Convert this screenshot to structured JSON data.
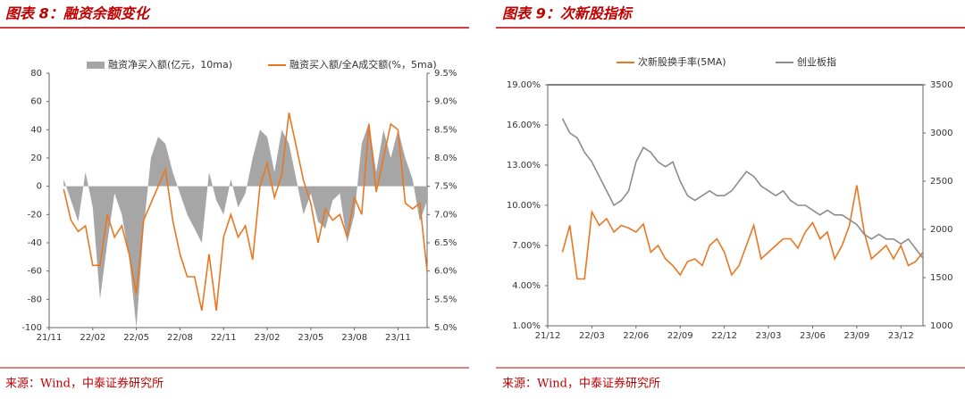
{
  "chart_data": [
    {
      "type": "combo",
      "title": "图表 8：融资余额变化",
      "source": "来源：Wind，中泰证券研究所",
      "categories": [
        "21/11",
        null,
        null,
        null,
        null,
        null,
        "22/02",
        null,
        null,
        null,
        null,
        null,
        "22/05",
        null,
        null,
        null,
        null,
        null,
        "22/08",
        null,
        null,
        null,
        null,
        null,
        "22/11",
        null,
        null,
        null,
        null,
        null,
        "23/02",
        null,
        null,
        null,
        null,
        null,
        "23/05",
        null,
        null,
        null,
        null,
        null,
        "23/08",
        null,
        null,
        null,
        null,
        null,
        "23/11",
        null,
        null,
        null,
        null
      ],
      "ylim": [
        -100,
        80
      ],
      "yticks": [
        -100,
        -80,
        -60,
        -40,
        -20,
        0,
        20,
        40,
        60,
        80
      ],
      "y2lim": [
        5.0,
        9.5
      ],
      "y2ticks": [
        {
          "value": 5.0,
          "label": "5.0%"
        },
        {
          "value": 5.5,
          "label": "5.5%"
        },
        {
          "value": 6.0,
          "label": "6.0%"
        },
        {
          "value": 6.5,
          "label": "6.5%"
        },
        {
          "value": 7.0,
          "label": "7.0%"
        },
        {
          "value": 7.5,
          "label": "7.5%"
        },
        {
          "value": 8.0,
          "label": "8.0%"
        },
        {
          "value": 8.5,
          "label": "8.5%"
        },
        {
          "value": 9.0,
          "label": "9.0%"
        },
        {
          "value": 9.5,
          "label": "9.5%"
        }
      ],
      "series": [
        {
          "name": "融资净买入额(亿元，10ma)",
          "type": "area",
          "color": "#a6a6a6",
          "values": [
            null,
            null,
            5,
            -10,
            -25,
            10,
            -15,
            -80,
            -40,
            -5,
            -20,
            -50,
            -100,
            -30,
            20,
            35,
            30,
            10,
            -5,
            -20,
            -30,
            -40,
            10,
            -10,
            -20,
            5,
            -15,
            -5,
            20,
            40,
            35,
            10,
            40,
            30,
            5,
            -20,
            -5,
            -25,
            -30,
            -10,
            -5,
            -40,
            -20,
            30,
            45,
            10,
            40,
            20,
            40,
            20,
            5,
            -25,
            -10
          ]
        },
        {
          "name": "融资买入额/全A成交额(%，5ma)",
          "type": "line",
          "axis": "y2",
          "color": "#e87722",
          "values": [
            null,
            null,
            7.45,
            6.9,
            6.7,
            6.8,
            6.1,
            6.1,
            7.0,
            6.6,
            6.8,
            6.3,
            5.6,
            6.9,
            7.2,
            7.5,
            7.8,
            6.9,
            6.3,
            5.9,
            5.9,
            5.3,
            6.3,
            5.3,
            6.6,
            7.0,
            6.6,
            6.8,
            6.2,
            7.5,
            7.9,
            7.3,
            7.7,
            8.8,
            8.2,
            7.6,
            7.2,
            6.5,
            7.1,
            6.9,
            7.0,
            6.6,
            7.3,
            7.0,
            8.6,
            7.4,
            8.0,
            8.6,
            8.5,
            7.2,
            7.1,
            7.2,
            6.0
          ]
        }
      ]
    },
    {
      "type": "combo",
      "title": "图表 9：次新股指标",
      "source": "来源：Wind，中泰证券研究所",
      "categories": [
        "21/12",
        null,
        null,
        null,
        null,
        null,
        "22/03",
        null,
        null,
        null,
        null,
        null,
        "22/06",
        null,
        null,
        null,
        null,
        null,
        "22/09",
        null,
        null,
        null,
        null,
        null,
        "22/12",
        null,
        null,
        null,
        null,
        null,
        "23/03",
        null,
        null,
        null,
        null,
        null,
        "23/06",
        null,
        null,
        null,
        null,
        null,
        "23/09",
        null,
        null,
        null,
        null,
        null,
        "23/12",
        null,
        null,
        null
      ],
      "ylim": [
        1,
        19
      ],
      "yticks": [
        {
          "value": 1,
          "label": "1.00%"
        },
        {
          "value": 4,
          "label": "4.00%"
        },
        {
          "value": 7,
          "label": "7.00%"
        },
        {
          "value": 10,
          "label": "10.00%"
        },
        {
          "value": 13,
          "label": "13.00%"
        },
        {
          "value": 16,
          "label": "16.00%"
        },
        {
          "value": 19,
          "label": "19.00%"
        }
      ],
      "y2lim": [
        1000,
        3500
      ],
      "y2ticks": [
        1000,
        1500,
        2000,
        2500,
        3000,
        3500
      ],
      "series": [
        {
          "name": "次新股换手率(5MA)",
          "type": "line",
          "color": "#e87722",
          "values": [
            null,
            null,
            6.5,
            8.5,
            4.5,
            4.5,
            9.5,
            8.5,
            9.0,
            8.0,
            8.5,
            8.3,
            8.0,
            8.6,
            6.5,
            7.0,
            6.0,
            5.5,
            4.8,
            5.8,
            6.0,
            5.5,
            7.0,
            7.5,
            6.5,
            4.8,
            5.5,
            7.0,
            8.5,
            6.0,
            6.5,
            7.0,
            7.5,
            7.5,
            6.8,
            8.0,
            8.7,
            7.5,
            8.0,
            6.0,
            7.0,
            8.5,
            11.5,
            8.0,
            6.0,
            6.5,
            7.0,
            6.0,
            7.0,
            5.5,
            5.8,
            6.5
          ]
        },
        {
          "name": "创业板指",
          "type": "line",
          "axis": "y2",
          "color": "#8c8c8c",
          "values": [
            null,
            null,
            3150,
            3000,
            2950,
            2800,
            2700,
            2550,
            2400,
            2250,
            2300,
            2400,
            2700,
            2850,
            2800,
            2700,
            2650,
            2700,
            2500,
            2350,
            2300,
            2350,
            2400,
            2350,
            2350,
            2400,
            2500,
            2600,
            2550,
            2450,
            2400,
            2350,
            2400,
            2300,
            2250,
            2250,
            2200,
            2150,
            2200,
            2150,
            2150,
            2100,
            2050,
            1950,
            1900,
            1950,
            1900,
            1900,
            1850,
            1900,
            1800,
            1700
          ]
        }
      ]
    }
  ]
}
